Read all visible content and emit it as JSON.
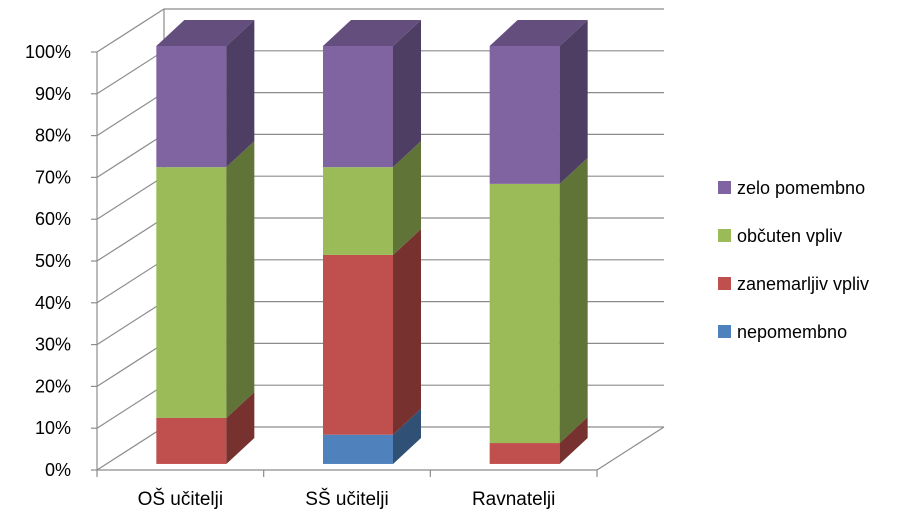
{
  "chart_data": {
    "type": "bar",
    "stacked": true,
    "percent_stacked": true,
    "three_d": true,
    "categories": [
      "OŠ učitelji",
      "SŠ učitelji",
      "Ravnatelji"
    ],
    "y_ticks": [
      "0%",
      "10%",
      "20%",
      "30%",
      "40%",
      "50%",
      "60%",
      "70%",
      "80%",
      "90%",
      "100%"
    ],
    "ylim": [
      0,
      100
    ],
    "grid": true,
    "legend_position": "right",
    "series": [
      {
        "name": "nepomembno",
        "color": "#4F81BD",
        "values": [
          0,
          7,
          0
        ]
      },
      {
        "name": "zanemarljiv vpliv",
        "color": "#C0504D",
        "values": [
          11,
          43,
          5
        ]
      },
      {
        "name": "občuten vpliv",
        "color": "#9BBB59",
        "values": [
          60,
          21,
          62
        ]
      },
      {
        "name": "zelo pomembno",
        "color": "#8064A2",
        "values": [
          29,
          29,
          33
        ]
      }
    ]
  }
}
